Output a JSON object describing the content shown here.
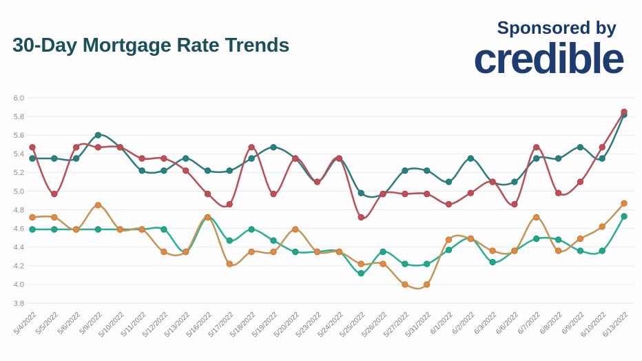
{
  "header": {
    "title": "30-Day Mortgage Rate Trends",
    "sponsored_by": "Sponsored by",
    "sponsor_logo": "credible"
  },
  "style": {
    "title_color": "#1b4f5a",
    "sponsor_color": "#16386f",
    "logo_color": "#1e3c70",
    "grid_color": "#e9e9e9",
    "axis_label_color": "#8c8c8c",
    "x_label_color": "#7d7d7d",
    "background": "#fdfdfd"
  },
  "chart_data": {
    "type": "line",
    "title": "30-Day Mortgage Rate Trends",
    "xlabel": "",
    "ylabel": "",
    "ylim": [
      3.8,
      6.0
    ],
    "ytick_step": 0.2,
    "yticks": [
      "6.0",
      "5.8",
      "5.6",
      "5.4",
      "5.2",
      "5.0",
      "4.8",
      "4.6",
      "4.4",
      "4.2",
      "4.0",
      "3.8"
    ],
    "grid": "horizontal",
    "legend": "none",
    "categories": [
      "5/4/2022",
      "5/5/2022",
      "5/6/2022",
      "5/9/2022",
      "5/10/2022",
      "5/11/2022",
      "5/12/2022",
      "5/13/2022",
      "5/16/2022",
      "5/17/2022",
      "5/18/2022",
      "5/19/2022",
      "5/20/2022",
      "5/23/2022",
      "5/24/2022",
      "5/25/2022",
      "5/26/2022",
      "5/27/2022",
      "5/31/2022",
      "6/1/2022",
      "6/2/2022",
      "6/3/2022",
      "6/6/2022",
      "6/7/2022",
      "6/8/2022",
      "6/9/2022",
      "6/10/2022",
      "6/13/2022"
    ],
    "series": [
      {
        "name": "green-line",
        "line_color": "#2fae96",
        "dot_color": "#1ea88a",
        "dot_stroke": "#1a9179",
        "values": [
          4.59,
          4.59,
          4.59,
          4.59,
          4.59,
          4.59,
          4.59,
          4.35,
          4.72,
          4.47,
          4.59,
          4.47,
          4.35,
          4.35,
          4.35,
          4.12,
          4.35,
          4.22,
          4.22,
          4.37,
          4.49,
          4.24,
          4.36,
          4.49,
          4.48,
          4.36,
          4.36,
          4.73
        ]
      },
      {
        "name": "orange-line",
        "line_color": "#c49758",
        "dot_color": "#e08a43",
        "dot_stroke": "#c9742f",
        "values": [
          4.72,
          4.72,
          4.59,
          4.85,
          4.59,
          4.59,
          4.35,
          4.35,
          4.72,
          4.22,
          4.35,
          4.35,
          4.59,
          4.35,
          4.35,
          4.22,
          4.22,
          4.0,
          4.0,
          4.48,
          4.49,
          4.36,
          4.36,
          4.72,
          4.36,
          4.49,
          4.62,
          4.87
        ]
      },
      {
        "name": "teal-line",
        "line_color": "#2f7c7e",
        "dot_color": "#27817f",
        "dot_stroke": "#21706f",
        "values": [
          5.35,
          5.35,
          5.35,
          5.6,
          5.47,
          5.22,
          5.22,
          5.35,
          5.22,
          5.22,
          5.35,
          5.47,
          5.35,
          5.1,
          5.35,
          4.98,
          4.97,
          5.22,
          5.22,
          5.1,
          5.35,
          5.1,
          5.1,
          5.35,
          5.35,
          5.47,
          5.35,
          5.82
        ]
      },
      {
        "name": "red-line",
        "line_color": "#b5535c",
        "dot_color": "#c04e54",
        "dot_stroke": "#a3454c",
        "values": [
          5.47,
          4.97,
          5.47,
          5.47,
          5.47,
          5.35,
          5.35,
          5.22,
          4.97,
          4.86,
          5.47,
          4.97,
          5.35,
          5.1,
          5.35,
          4.72,
          4.97,
          4.97,
          4.97,
          4.86,
          4.98,
          5.1,
          4.86,
          5.47,
          4.98,
          5.1,
          5.47,
          5.85
        ]
      }
    ]
  }
}
